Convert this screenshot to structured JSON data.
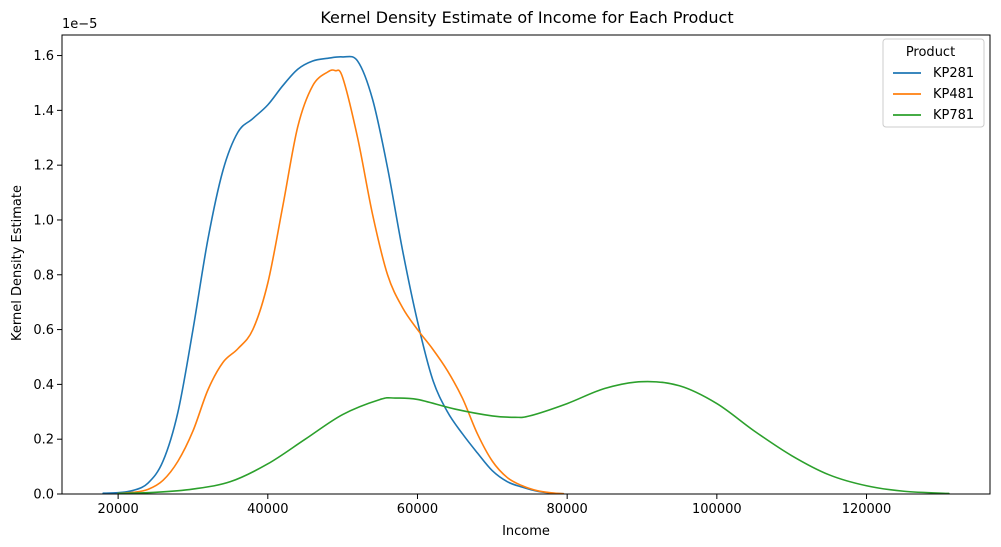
{
  "chart_data": {
    "type": "line",
    "title": "Kernel Density Estimate of Income for Each Product",
    "xlabel": "Income",
    "ylabel": "Kernel Density Estimate",
    "y_offset_label": "1e−5",
    "xlim": [
      12500,
      136500
    ],
    "ylim": [
      0,
      1.675
    ],
    "y_scale_multiplier": 1e-05,
    "x_ticks": [
      20000,
      40000,
      60000,
      80000,
      100000,
      120000
    ],
    "x_tick_labels": [
      "20000",
      "40000",
      "60000",
      "80000",
      "100000",
      "120000"
    ],
    "y_ticks": [
      0,
      0.2,
      0.4,
      0.6,
      0.8,
      1.0,
      1.2,
      1.4,
      1.6
    ],
    "y_tick_labels": [
      "0.0",
      "0.2",
      "0.4",
      "0.6",
      "0.8",
      "1.0",
      "1.2",
      "1.4",
      "1.6"
    ],
    "grid": false,
    "legend": {
      "title": "Product",
      "position": "top-right"
    },
    "series": [
      {
        "name": "KP281",
        "color": "#1f77b4",
        "x": [
          18000,
          20000,
          22000,
          24000,
          26000,
          28000,
          30000,
          32000,
          34000,
          36000,
          38000,
          40000,
          42000,
          44000,
          46000,
          48000,
          50000,
          52000,
          54000,
          56000,
          58000,
          60000,
          62000,
          64000,
          66000,
          68000,
          70000,
          72000,
          74000,
          76000,
          78000,
          79500
        ],
        "y": [
          0.003,
          0.005,
          0.013,
          0.04,
          0.12,
          0.3,
          0.6,
          0.93,
          1.18,
          1.32,
          1.37,
          1.42,
          1.49,
          1.55,
          1.58,
          1.59,
          1.595,
          1.58,
          1.44,
          1.19,
          0.89,
          0.63,
          0.42,
          0.3,
          0.22,
          0.15,
          0.085,
          0.045,
          0.025,
          0.01,
          0.003,
          0.001
        ]
      },
      {
        "name": "KP481",
        "color": "#ff7f0e",
        "x": [
          20000,
          22000,
          24000,
          26000,
          28000,
          30000,
          32000,
          34000,
          36000,
          38000,
          40000,
          42000,
          44000,
          46000,
          48000,
          49000,
          50000,
          52000,
          54000,
          56000,
          58000,
          60000,
          62000,
          64000,
          66000,
          68000,
          70000,
          72000,
          74000,
          76000,
          78000,
          79500
        ],
        "y": [
          0.002,
          0.006,
          0.017,
          0.05,
          0.12,
          0.23,
          0.38,
          0.48,
          0.53,
          0.6,
          0.77,
          1.05,
          1.34,
          1.49,
          1.54,
          1.545,
          1.52,
          1.3,
          1.02,
          0.8,
          0.68,
          0.6,
          0.53,
          0.45,
          0.35,
          0.22,
          0.12,
          0.06,
          0.03,
          0.012,
          0.004,
          0.001
        ]
      },
      {
        "name": "KP781",
        "color": "#2ca02c",
        "x": [
          20000,
          25000,
          30000,
          35000,
          40000,
          45000,
          50000,
          55000,
          57000,
          60000,
          65000,
          70000,
          73000,
          75000,
          80000,
          85000,
          90000,
          95000,
          100000,
          105000,
          110000,
          115000,
          120000,
          125000,
          131000
        ],
        "y": [
          0.002,
          0.006,
          0.018,
          0.045,
          0.11,
          0.2,
          0.29,
          0.345,
          0.35,
          0.345,
          0.31,
          0.285,
          0.28,
          0.285,
          0.33,
          0.385,
          0.41,
          0.395,
          0.33,
          0.23,
          0.14,
          0.07,
          0.03,
          0.01,
          0.002
        ]
      }
    ]
  }
}
